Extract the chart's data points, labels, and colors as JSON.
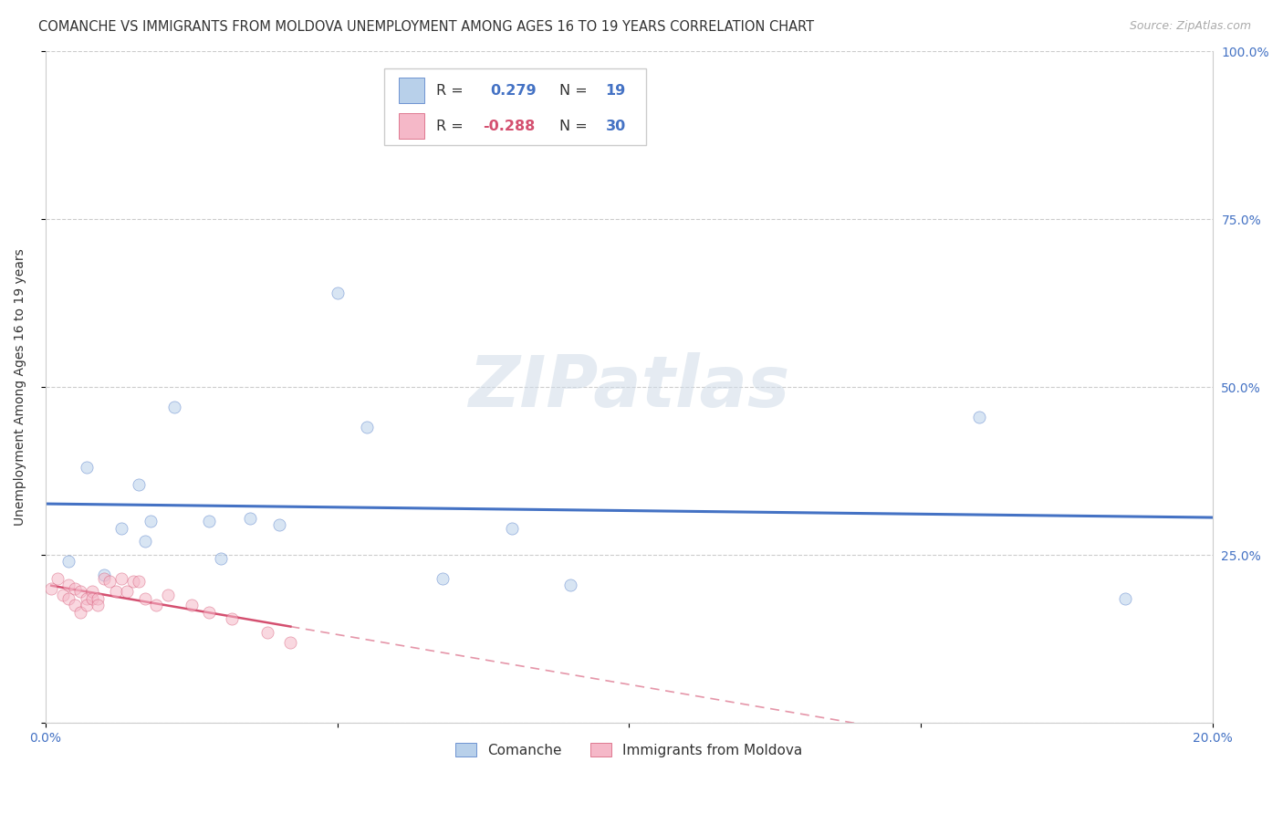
{
  "title": "COMANCHE VS IMMIGRANTS FROM MOLDOVA UNEMPLOYMENT AMONG AGES 16 TO 19 YEARS CORRELATION CHART",
  "source": "Source: ZipAtlas.com",
  "ylabel": "Unemployment Among Ages 16 to 19 years",
  "xlim": [
    0.0,
    0.2
  ],
  "ylim": [
    0.0,
    1.0
  ],
  "xticks": [
    0.0,
    0.05,
    0.1,
    0.15,
    0.2
  ],
  "xticklabels": [
    "0.0%",
    "",
    "",
    "",
    "20.0%"
  ],
  "yticks": [
    0.0,
    0.25,
    0.5,
    0.75,
    1.0
  ],
  "yticklabels": [
    "",
    "25.0%",
    "50.0%",
    "75.0%",
    "100.0%"
  ],
  "comanche_x": [
    0.004,
    0.007,
    0.01,
    0.013,
    0.016,
    0.017,
    0.018,
    0.022,
    0.028,
    0.03,
    0.035,
    0.04,
    0.05,
    0.055,
    0.068,
    0.08,
    0.09,
    0.16,
    0.185
  ],
  "comanche_y": [
    0.24,
    0.38,
    0.22,
    0.29,
    0.355,
    0.27,
    0.3,
    0.47,
    0.3,
    0.245,
    0.305,
    0.295,
    0.64,
    0.44,
    0.215,
    0.29,
    0.205,
    0.455,
    0.185
  ],
  "moldova_x": [
    0.001,
    0.002,
    0.003,
    0.004,
    0.004,
    0.005,
    0.005,
    0.006,
    0.006,
    0.007,
    0.007,
    0.008,
    0.008,
    0.009,
    0.009,
    0.01,
    0.011,
    0.012,
    0.013,
    0.014,
    0.015,
    0.016,
    0.017,
    0.019,
    0.021,
    0.025,
    0.028,
    0.032,
    0.038,
    0.042
  ],
  "moldova_y": [
    0.2,
    0.215,
    0.19,
    0.205,
    0.185,
    0.2,
    0.175,
    0.195,
    0.165,
    0.185,
    0.175,
    0.195,
    0.185,
    0.185,
    0.175,
    0.215,
    0.21,
    0.195,
    0.215,
    0.195,
    0.21,
    0.21,
    0.185,
    0.175,
    0.19,
    0.175,
    0.165,
    0.155,
    0.135,
    0.12
  ],
  "comanche_R": 0.279,
  "comanche_N": 19,
  "moldova_R": -0.288,
  "moldova_N": 30,
  "comanche_color": "#b8d0ea",
  "comanche_edge_color": "#4472c4",
  "moldova_color": "#f5b8c8",
  "moldova_edge_color": "#d45070",
  "comanche_line_color": "#4472c4",
  "moldova_line_color": "#d45070",
  "background_color": "#ffffff",
  "watermark_color": "#d0dce8",
  "title_fontsize": 10.5,
  "source_fontsize": 9,
  "axis_label_fontsize": 10,
  "tick_fontsize": 10,
  "marker_size": 90,
  "marker_alpha": 0.55,
  "legend_R_color_blue": "#4472c4",
  "legend_R_color_pink": "#d45070",
  "legend_N_color": "#4472c4"
}
